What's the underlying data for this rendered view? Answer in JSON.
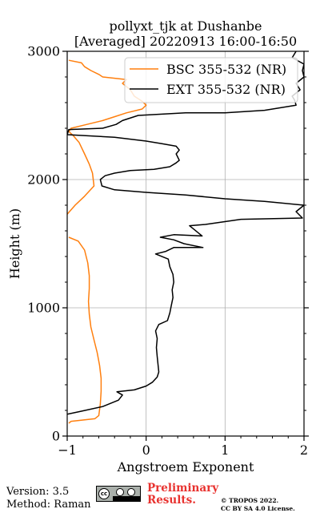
{
  "chart_data": {
    "type": "line",
    "title_line1": "pollyxt_tjk at Dushanbe",
    "title_line2": "[Averaged] 20220913 16:00-16:50",
    "xlabel": "Angstroem Exponent",
    "ylabel": "Height (m)",
    "xlim": [
      -1,
      2
    ],
    "ylim": [
      0,
      3000
    ],
    "xticks": [
      "−1",
      "0",
      "1",
      "2"
    ],
    "yticks": [
      "0",
      "1000",
      "2000",
      "3000"
    ],
    "grid": true,
    "legend_position": "top-right",
    "series": [
      {
        "name": "BSC 355-532 (NR)",
        "color": "#ff7f0e",
        "points": [
          [
            -0.98,
            100
          ],
          [
            -0.95,
            115
          ],
          [
            -0.65,
            135
          ],
          [
            -0.6,
            160
          ],
          [
            -0.58,
            250
          ],
          [
            -0.57,
            350
          ],
          [
            -0.57,
            450
          ],
          [
            -0.59,
            550
          ],
          [
            -0.62,
            650
          ],
          [
            -0.66,
            750
          ],
          [
            -0.7,
            850
          ],
          [
            -0.72,
            950
          ],
          [
            -0.73,
            1050
          ],
          [
            -0.72,
            1150
          ],
          [
            -0.72,
            1250
          ],
          [
            -0.74,
            1350
          ],
          [
            -0.78,
            1450
          ],
          [
            -0.86,
            1520
          ],
          [
            -0.98,
            1550
          ]
        ]
      },
      {
        "name": "BSC 355-532 (NR)",
        "color": "#ff7f0e",
        "points": [
          [
            -1.0,
            1730
          ],
          [
            -0.9,
            1800
          ],
          [
            -0.78,
            1870
          ],
          [
            -0.66,
            1950
          ],
          [
            -0.68,
            2050
          ],
          [
            -0.72,
            2120
          ],
          [
            -0.78,
            2200
          ],
          [
            -0.85,
            2290
          ],
          [
            -0.92,
            2340
          ],
          [
            -0.98,
            2375
          ],
          [
            -0.95,
            2400
          ],
          [
            -0.75,
            2430
          ],
          [
            -0.55,
            2460
          ],
          [
            -0.4,
            2490
          ],
          [
            -0.25,
            2520
          ],
          [
            -0.05,
            2550
          ],
          [
            0.0,
            2580
          ],
          [
            -0.05,
            2610
          ],
          [
            -0.15,
            2650
          ],
          [
            -0.2,
            2700
          ],
          [
            -0.3,
            2750
          ],
          [
            -0.25,
            2780
          ],
          [
            -0.55,
            2800
          ],
          [
            -0.6,
            2820
          ],
          [
            -0.7,
            2850
          ],
          [
            -0.78,
            2880
          ],
          [
            -0.82,
            2910
          ],
          [
            -0.98,
            2930
          ]
        ]
      },
      {
        "name": "EXT 355-532 (NR)",
        "color": "#000000",
        "points": [
          [
            -1.0,
            170
          ],
          [
            -0.85,
            190
          ],
          [
            -0.55,
            230
          ],
          [
            -0.35,
            280
          ],
          [
            -0.3,
            320
          ],
          [
            -0.37,
            345
          ],
          [
            -0.15,
            360
          ],
          [
            0.0,
            390
          ],
          [
            0.08,
            420
          ],
          [
            0.14,
            460
          ],
          [
            0.16,
            500
          ],
          [
            0.15,
            560
          ],
          [
            0.14,
            620
          ],
          [
            0.13,
            690
          ],
          [
            0.14,
            760
          ],
          [
            0.12,
            820
          ],
          [
            0.16,
            870
          ],
          [
            0.27,
            900
          ],
          [
            0.3,
            960
          ],
          [
            0.32,
            1020
          ],
          [
            0.34,
            1080
          ],
          [
            0.33,
            1140
          ],
          [
            0.35,
            1200
          ],
          [
            0.34,
            1260
          ],
          [
            0.3,
            1320
          ],
          [
            0.28,
            1380
          ],
          [
            0.12,
            1420
          ],
          [
            0.25,
            1440
          ],
          [
            0.35,
            1470
          ],
          [
            0.72,
            1470
          ],
          [
            0.48,
            1500
          ],
          [
            0.35,
            1530
          ],
          [
            0.18,
            1550
          ],
          [
            0.35,
            1570
          ],
          [
            0.71,
            1560
          ],
          [
            0.55,
            1640
          ],
          [
            0.75,
            1650
          ],
          [
            1.2,
            1690
          ],
          [
            1.98,
            1700
          ],
          [
            1.9,
            1750
          ],
          [
            2.0,
            1800
          ],
          [
            1.5,
            1830
          ],
          [
            1.0,
            1850
          ],
          [
            0.5,
            1880
          ],
          [
            0.0,
            1900
          ],
          [
            -0.4,
            1920
          ],
          [
            -0.56,
            1950
          ],
          [
            -0.58,
            2000
          ],
          [
            -0.52,
            2030
          ],
          [
            -0.4,
            2050
          ],
          [
            -0.2,
            2070
          ],
          [
            0.1,
            2080
          ],
          [
            0.3,
            2100
          ],
          [
            0.38,
            2130
          ],
          [
            0.42,
            2150
          ],
          [
            0.38,
            2200
          ],
          [
            0.42,
            2230
          ],
          [
            0.38,
            2260
          ],
          [
            0.2,
            2280
          ],
          [
            0.0,
            2300
          ],
          [
            -0.4,
            2330
          ],
          [
            -1.0,
            2350
          ],
          [
            -0.98,
            2390
          ],
          [
            -0.55,
            2400
          ],
          [
            -0.38,
            2430
          ],
          [
            -0.3,
            2460
          ],
          [
            -0.1,
            2500
          ],
          [
            0.5,
            2520
          ],
          [
            1.0,
            2520
          ],
          [
            1.5,
            2540
          ],
          [
            1.9,
            2580
          ],
          [
            1.88,
            2620
          ],
          [
            1.85,
            2650
          ],
          [
            1.95,
            2700
          ],
          [
            1.9,
            2750
          ],
          [
            2.0,
            2800
          ],
          [
            1.98,
            2850
          ],
          [
            2.0,
            2900
          ],
          [
            1.85,
            2950
          ],
          [
            1.9,
            3000
          ]
        ]
      }
    ],
    "legend": [
      {
        "label": "BSC 355-532 (NR)",
        "color": "#ff7f0e"
      },
      {
        "label": "EXT 355-532 (NR)",
        "color": "#000000"
      }
    ]
  },
  "footer": {
    "version": "Version: 3.5",
    "method": "Method: Raman",
    "preliminary_line1": "Preliminary",
    "preliminary_line2": "Results.",
    "copyright_line1": "© TROPOS 2022.",
    "copyright_line2": "CC BY SA 4.0 License.",
    "license_badge": "cc",
    "license_icon": "cc-by-sa-icon"
  }
}
